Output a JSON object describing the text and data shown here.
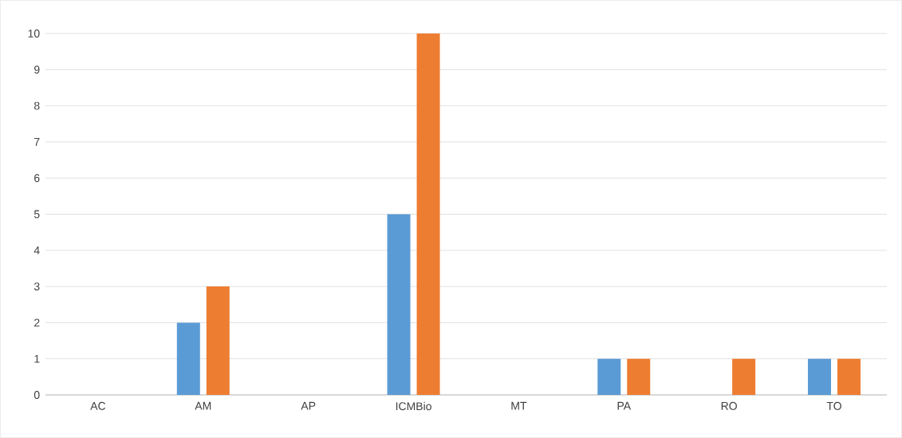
{
  "chart_data": {
    "type": "bar",
    "categories": [
      "AC",
      "AM",
      "AP",
      "ICMBio",
      "MT",
      "PA",
      "RO",
      "TO"
    ],
    "series": [
      {
        "color": "#5b9bd5",
        "values": [
          0,
          2,
          0,
          5,
          0,
          1,
          0,
          1
        ]
      },
      {
        "color": "#ed7d31",
        "values": [
          0,
          3,
          0,
          10,
          0,
          1,
          1,
          1
        ]
      }
    ],
    "ylim": [
      0,
      10
    ],
    "yticks": [
      0,
      1,
      2,
      3,
      4,
      5,
      6,
      7,
      8,
      9,
      10
    ],
    "grid": "y"
  }
}
